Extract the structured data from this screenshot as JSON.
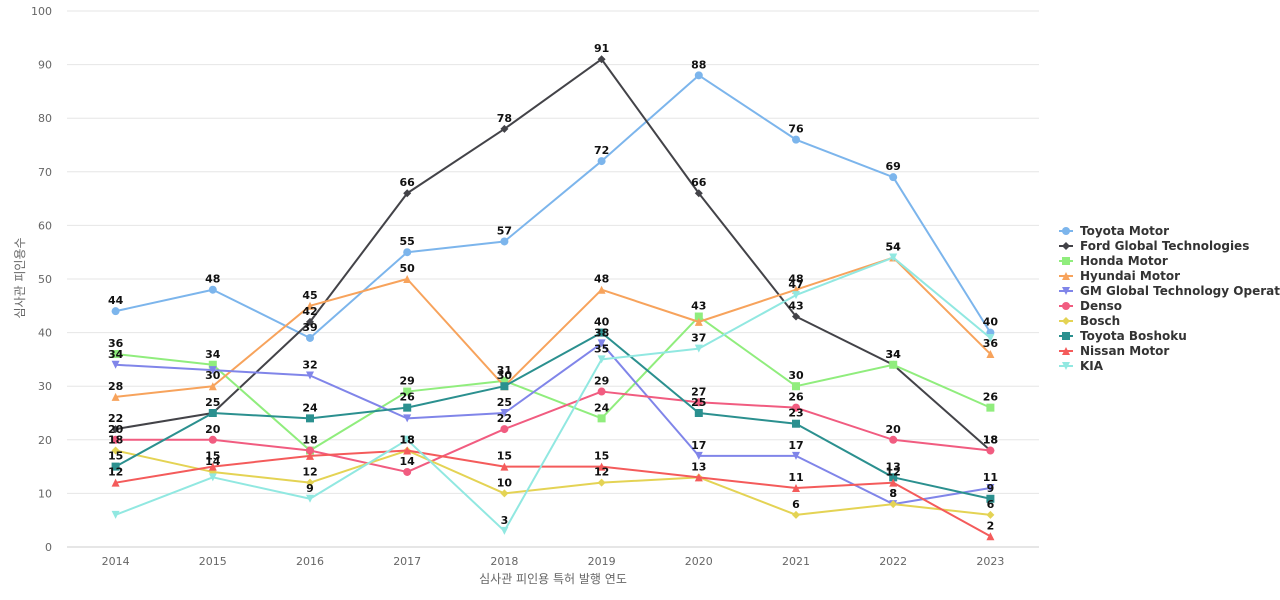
{
  "chart_data": {
    "type": "line",
    "title": "",
    "xlabel": "심사관 피인용 특허 발행 연도",
    "ylabel": "심사관 피인용수",
    "ylim": [
      0,
      100
    ],
    "yticks": [
      0,
      10,
      20,
      30,
      40,
      50,
      60,
      70,
      80,
      90,
      100
    ],
    "grid": true,
    "legend": "right",
    "x": [
      "2014",
      "2015",
      "2016",
      "2017",
      "2018",
      "2019",
      "2020",
      "2021",
      "2022",
      "2023"
    ],
    "series": [
      {
        "name": "Toyota Motor",
        "color": "#7cb5ec",
        "marker": "circle",
        "values": [
          44,
          48,
          39,
          55,
          57,
          72,
          88,
          76,
          69,
          40
        ]
      },
      {
        "name": "Ford Global Technologies",
        "color": "#434348",
        "marker": "diamond",
        "values": [
          22,
          25,
          42,
          66,
          78,
          91,
          66,
          43,
          34,
          18
        ]
      },
      {
        "name": "Honda Motor",
        "color": "#90ed7d",
        "marker": "square",
        "values": [
          36,
          34,
          18,
          29,
          31,
          24,
          43,
          30,
          34,
          26
        ]
      },
      {
        "name": "Hyundai Motor",
        "color": "#f7a35c",
        "marker": "triangle",
        "values": [
          28,
          30,
          45,
          50,
          30,
          48,
          42,
          48,
          54,
          36
        ]
      },
      {
        "name": "GM Global Technology Operat...",
        "color": "#8085e9",
        "marker": "triangle-down",
        "values": [
          34,
          33,
          32,
          24,
          25,
          38,
          17,
          17,
          8,
          11
        ]
      },
      {
        "name": "Denso",
        "color": "#f15c80",
        "marker": "circle",
        "values": [
          20,
          20,
          18,
          14,
          22,
          29,
          27,
          26,
          20,
          18
        ]
      },
      {
        "name": "Bosch",
        "color": "#e4d354",
        "marker": "diamond",
        "values": [
          18,
          14,
          12,
          18,
          10,
          12,
          13,
          6,
          8,
          6
        ]
      },
      {
        "name": "Toyota Boshoku",
        "color": "#2b908f",
        "marker": "square",
        "values": [
          15,
          25,
          24,
          26,
          30,
          40,
          25,
          23,
          13,
          9
        ]
      },
      {
        "name": "Nissan Motor",
        "color": "#f45b5b",
        "marker": "triangle",
        "values": [
          12,
          15,
          17,
          18,
          15,
          15,
          13,
          11,
          12,
          2
        ]
      },
      {
        "name": "KIA",
        "color": "#91e8e1",
        "marker": "triangle-down",
        "values": [
          6,
          13,
          9,
          20,
          3,
          35,
          37,
          47,
          54,
          39
        ]
      }
    ],
    "data_labels": [
      {
        "series": 0,
        "points": [
          0,
          1,
          2,
          3,
          4,
          5,
          6,
          7,
          8,
          9
        ]
      },
      {
        "series": 1,
        "points": [
          0,
          2,
          3,
          4,
          5,
          6,
          7,
          8,
          9
        ]
      },
      {
        "series": 2,
        "points": [
          0,
          1,
          2,
          3,
          4,
          5,
          6,
          7,
          8,
          9
        ]
      },
      {
        "series": 3,
        "points": [
          0,
          1,
          2,
          3,
          5,
          7,
          8,
          9
        ]
      },
      {
        "series": 4,
        "points": [
          0,
          2,
          4,
          5,
          6,
          7,
          8,
          9
        ]
      },
      {
        "series": 5,
        "points": [
          0,
          1,
          3,
          4,
          5,
          6,
          7,
          8,
          9
        ]
      },
      {
        "series": 6,
        "points": [
          0,
          1,
          2,
          3,
          4,
          5,
          7,
          8,
          9
        ]
      },
      {
        "series": 7,
        "points": [
          0,
          1,
          2,
          3,
          4,
          5,
          6,
          7,
          8,
          9
        ]
      },
      {
        "series": 8,
        "points": [
          0,
          1,
          3,
          4,
          5,
          6,
          7,
          8,
          9
        ]
      },
      {
        "series": 9,
        "points": [
          2,
          4,
          5,
          6,
          7,
          8
        ]
      }
    ]
  }
}
